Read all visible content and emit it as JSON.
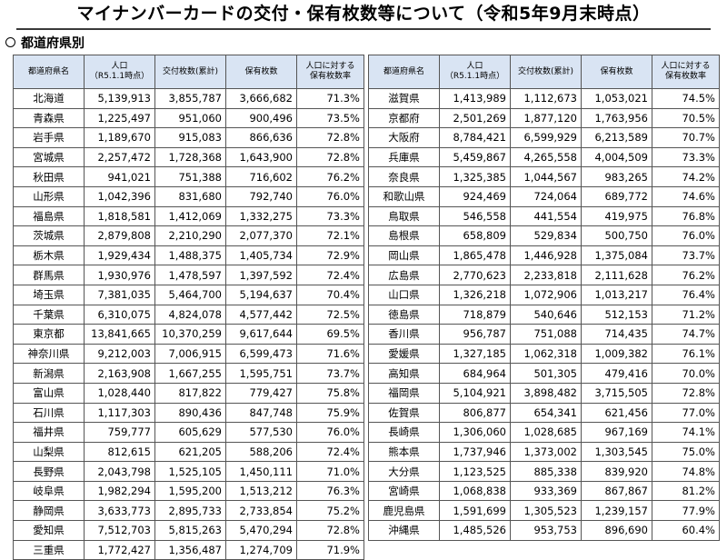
{
  "title": "マイナンバーカードの交付・保有枚数等について（令和5年9月末時点）",
  "section_heading": "都道府県別",
  "columns": {
    "name": "都道府県名",
    "population_line1": "人口",
    "population_line2": "（R5.1.1時点）",
    "issued": "交付枚数(累計)",
    "held": "保有枚数",
    "rate_line1": "人口に対する",
    "rate_line2": "保有枚数率"
  },
  "left_table": [
    [
      "北海道",
      "5,139,913",
      "3,855,787",
      "3,666,682",
      "71.3%"
    ],
    [
      "青森県",
      "1,225,497",
      "951,060",
      "900,496",
      "73.5%"
    ],
    [
      "岩手県",
      "1,189,670",
      "915,083",
      "866,636",
      "72.8%"
    ],
    [
      "宮城県",
      "2,257,472",
      "1,728,368",
      "1,643,900",
      "72.8%"
    ],
    [
      "秋田県",
      "941,021",
      "751,388",
      "716,602",
      "76.2%"
    ],
    [
      "山形県",
      "1,042,396",
      "831,680",
      "792,740",
      "76.0%"
    ],
    [
      "福島県",
      "1,818,581",
      "1,412,069",
      "1,332,275",
      "73.3%"
    ],
    [
      "茨城県",
      "2,879,808",
      "2,210,290",
      "2,077,370",
      "72.1%"
    ],
    [
      "栃木県",
      "1,929,434",
      "1,488,375",
      "1,405,734",
      "72.9%"
    ],
    [
      "群馬県",
      "1,930,976",
      "1,478,597",
      "1,397,592",
      "72.4%"
    ],
    [
      "埼玉県",
      "7,381,035",
      "5,464,700",
      "5,194,637",
      "70.4%"
    ],
    [
      "千葉県",
      "6,310,075",
      "4,824,078",
      "4,577,442",
      "72.5%"
    ],
    [
      "東京都",
      "13,841,665",
      "10,370,259",
      "9,617,644",
      "69.5%"
    ],
    [
      "神奈川県",
      "9,212,003",
      "7,006,915",
      "6,599,473",
      "71.6%"
    ],
    [
      "新潟県",
      "2,163,908",
      "1,667,255",
      "1,595,751",
      "73.7%"
    ],
    [
      "富山県",
      "1,028,440",
      "817,822",
      "779,427",
      "75.8%"
    ],
    [
      "石川県",
      "1,117,303",
      "890,436",
      "847,748",
      "75.9%"
    ],
    [
      "福井県",
      "759,777",
      "605,629",
      "577,530",
      "76.0%"
    ],
    [
      "山梨県",
      "812,615",
      "621,205",
      "588,206",
      "72.4%"
    ],
    [
      "長野県",
      "2,043,798",
      "1,525,105",
      "1,450,111",
      "71.0%"
    ],
    [
      "岐阜県",
      "1,982,294",
      "1,595,200",
      "1,513,212",
      "76.3%"
    ],
    [
      "静岡県",
      "3,633,773",
      "2,895,733",
      "2,733,854",
      "75.2%"
    ],
    [
      "愛知県",
      "7,512,703",
      "5,815,263",
      "5,470,294",
      "72.8%"
    ],
    [
      "三重県",
      "1,772,427",
      "1,356,487",
      "1,274,709",
      "71.9%"
    ]
  ],
  "right_table": [
    [
      "滋賀県",
      "1,413,989",
      "1,112,673",
      "1,053,021",
      "74.5%"
    ],
    [
      "京都府",
      "2,501,269",
      "1,877,120",
      "1,763,956",
      "70.5%"
    ],
    [
      "大阪府",
      "8,784,421",
      "6,599,929",
      "6,213,589",
      "70.7%"
    ],
    [
      "兵庫県",
      "5,459,867",
      "4,265,558",
      "4,004,509",
      "73.3%"
    ],
    [
      "奈良県",
      "1,325,385",
      "1,044,567",
      "983,265",
      "74.2%"
    ],
    [
      "和歌山県",
      "924,469",
      "724,064",
      "689,772",
      "74.6%"
    ],
    [
      "鳥取県",
      "546,558",
      "441,554",
      "419,975",
      "76.8%"
    ],
    [
      "島根県",
      "658,809",
      "529,834",
      "500,750",
      "76.0%"
    ],
    [
      "岡山県",
      "1,865,478",
      "1,446,928",
      "1,375,084",
      "73.7%"
    ],
    [
      "広島県",
      "2,770,623",
      "2,233,818",
      "2,111,628",
      "76.2%"
    ],
    [
      "山口県",
      "1,326,218",
      "1,072,906",
      "1,013,217",
      "76.4%"
    ],
    [
      "徳島県",
      "718,879",
      "540,646",
      "512,153",
      "71.2%"
    ],
    [
      "香川県",
      "956,787",
      "751,088",
      "714,435",
      "74.7%"
    ],
    [
      "愛媛県",
      "1,327,185",
      "1,062,318",
      "1,009,382",
      "76.1%"
    ],
    [
      "高知県",
      "684,964",
      "501,305",
      "479,416",
      "70.0%"
    ],
    [
      "福岡県",
      "5,104,921",
      "3,898,482",
      "3,715,505",
      "72.8%"
    ],
    [
      "佐賀県",
      "806,877",
      "654,341",
      "621,456",
      "77.0%"
    ],
    [
      "長崎県",
      "1,306,060",
      "1,028,685",
      "967,169",
      "74.1%"
    ],
    [
      "熊本県",
      "1,737,946",
      "1,373,002",
      "1,303,545",
      "75.0%"
    ],
    [
      "大分県",
      "1,123,525",
      "885,338",
      "839,920",
      "74.8%"
    ],
    [
      "宮崎県",
      "1,068,838",
      "933,369",
      "867,867",
      "81.2%"
    ],
    [
      "鹿児島県",
      "1,591,699",
      "1,305,523",
      "1,239,157",
      "77.9%"
    ],
    [
      "沖縄県",
      "1,485,526",
      "953,753",
      "896,690",
      "60.4%"
    ]
  ]
}
